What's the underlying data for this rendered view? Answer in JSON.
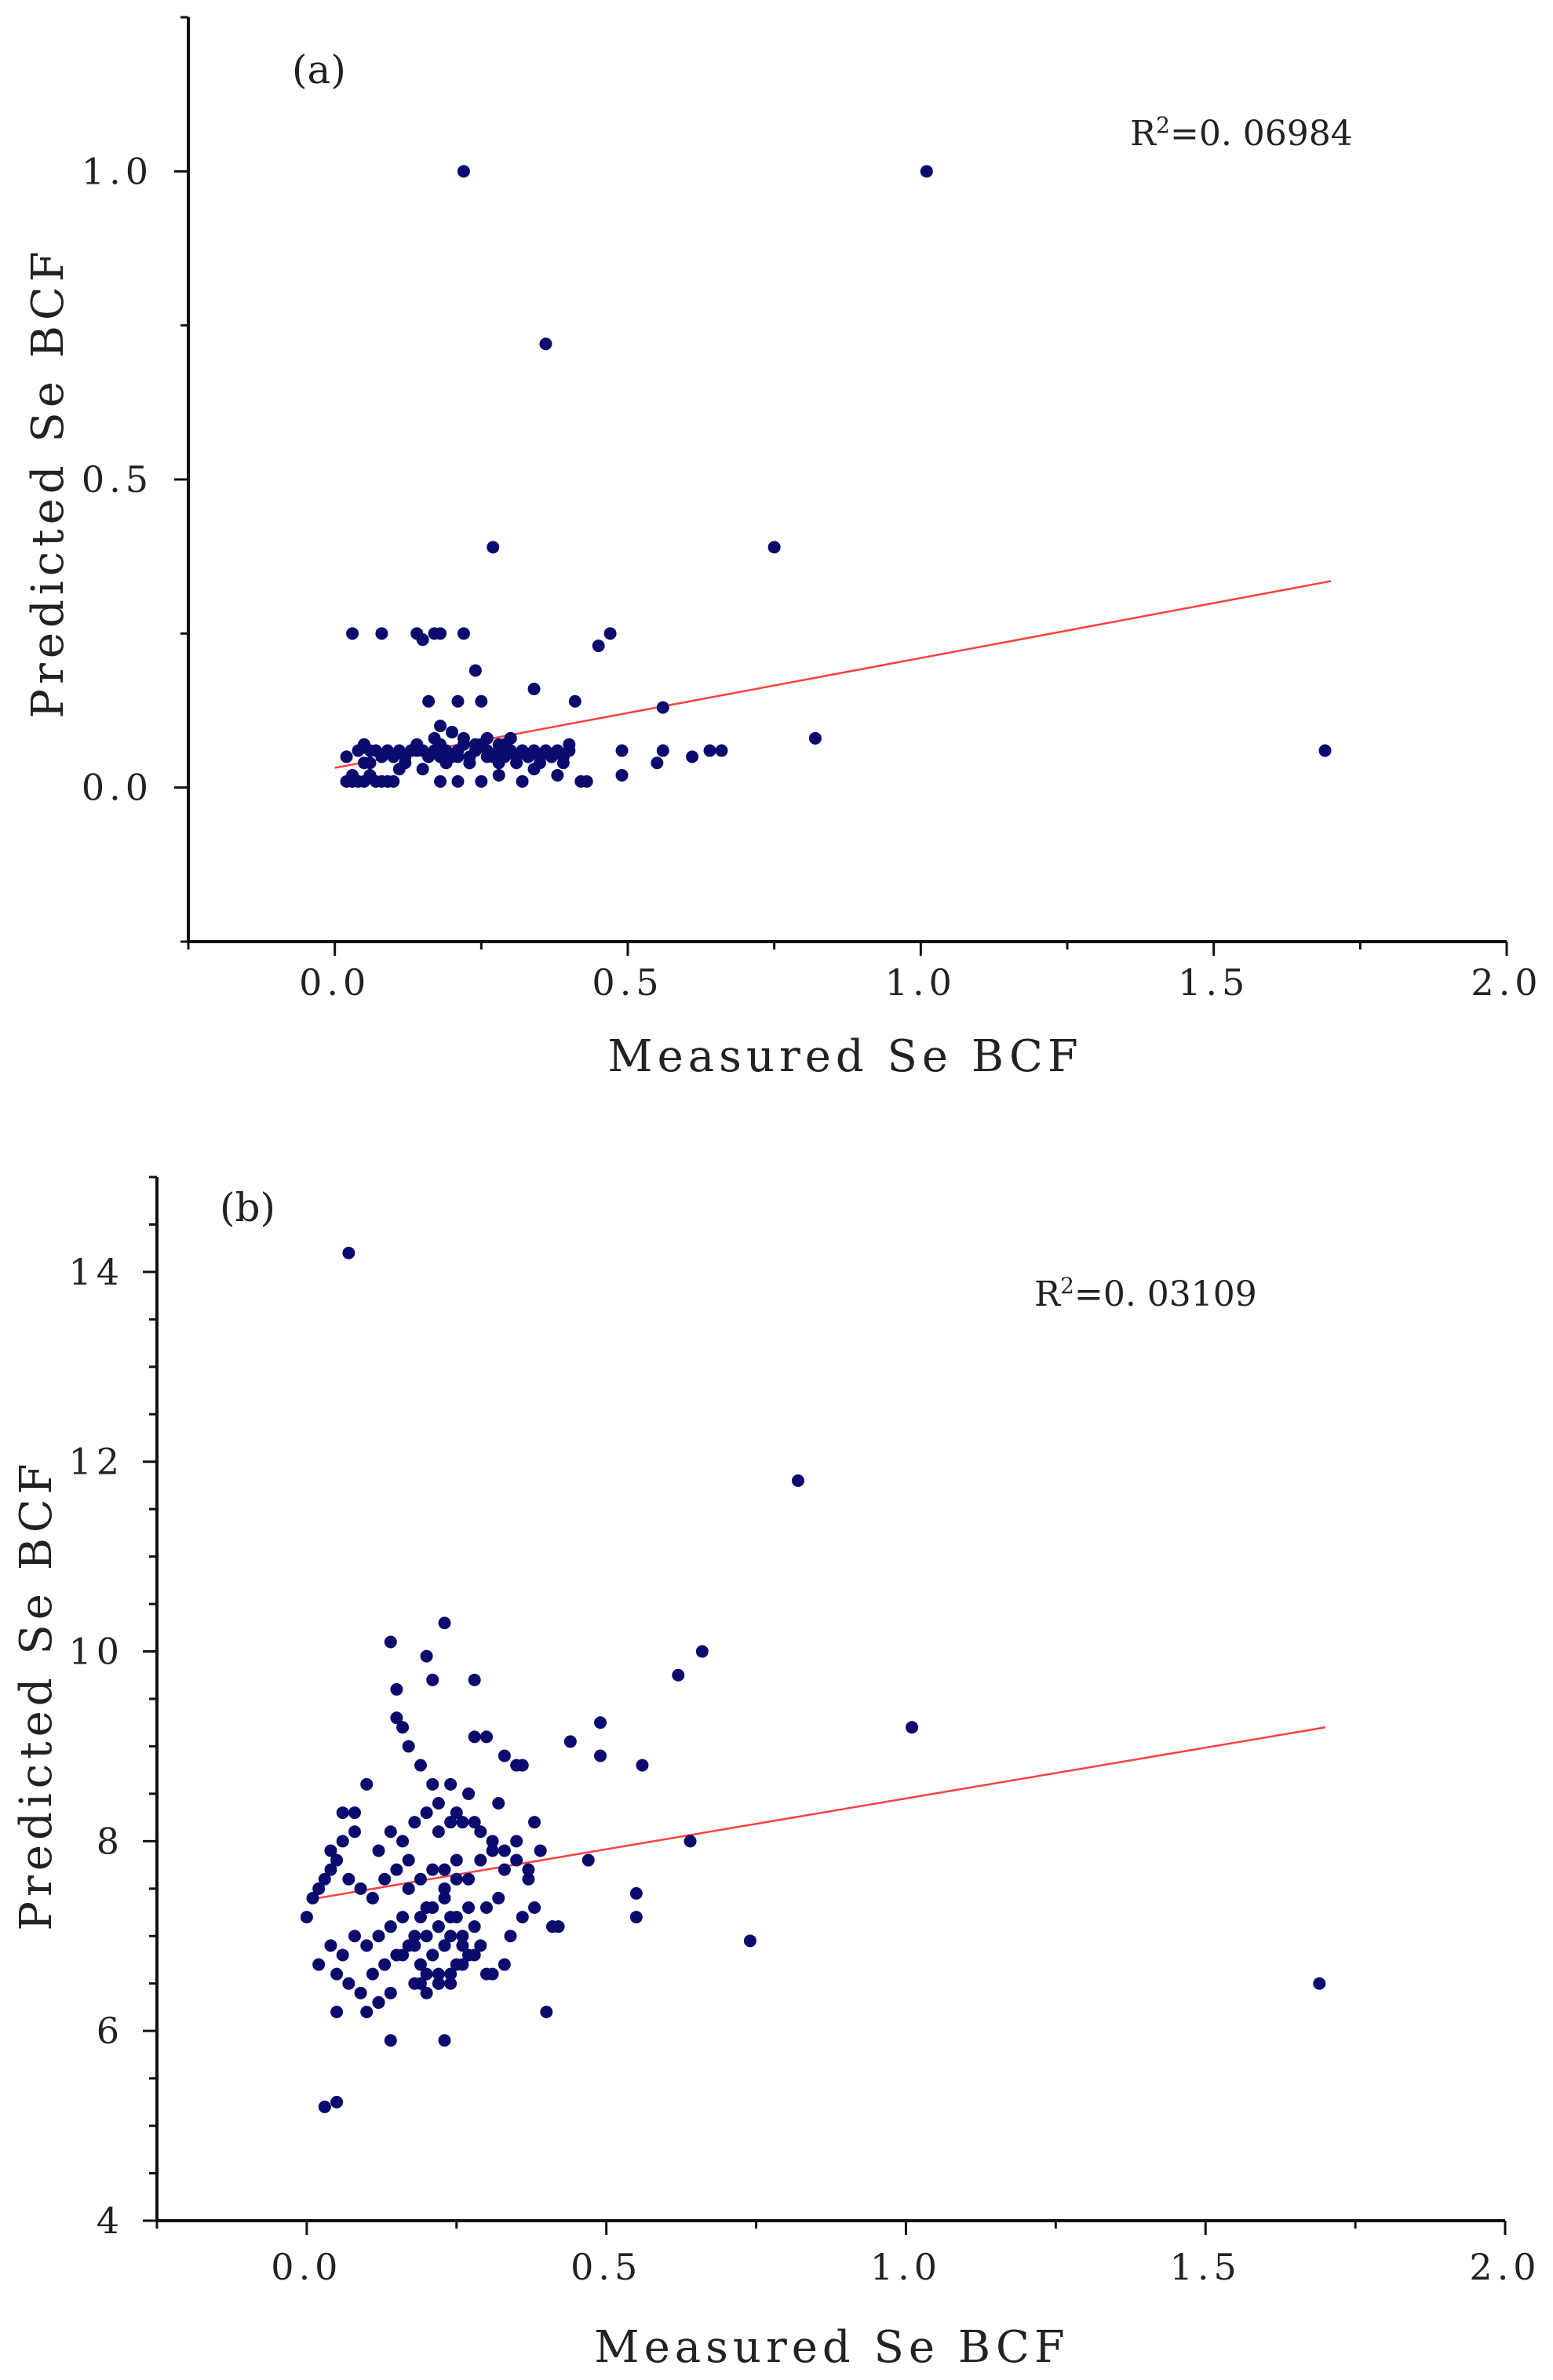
{
  "colors": {
    "point": "#0b0b6e",
    "fit_line": "#ff4040",
    "axis": "#111111"
  },
  "chart_data": [
    {
      "type": "scatter",
      "panel_label": "(a)",
      "r2_prefix": "R",
      "r2_sup": "2",
      "r2_value": "=0. 06984",
      "xlabel": "Measured Se BCF",
      "ylabel": "Predicted Se BCF",
      "xlim": [
        -0.25,
        2.0
      ],
      "ylim": [
        -0.25,
        1.25
      ],
      "xticks": [
        0.0,
        0.5,
        1.0,
        1.5,
        2.0
      ],
      "xtick_labels": [
        "0.0",
        "0.5",
        "1.0",
        "1.5",
        "2.0"
      ],
      "yticks": [
        0.0,
        0.5,
        1.0
      ],
      "ytick_labels": [
        "0.0",
        "0.5",
        "1.0"
      ],
      "yminor": [
        -0.25,
        0.25,
        0.75,
        1.25
      ],
      "xminor": [
        -0.25,
        0.25,
        0.75,
        1.25,
        1.75
      ],
      "fit_line": {
        "x": [
          0.0,
          1.7
        ],
        "y": [
          0.032,
          0.335
        ]
      },
      "points": {
        "x": [
          0.22,
          1.01,
          0.36,
          0.27,
          0.75,
          0.03,
          0.08,
          0.14,
          0.15,
          0.17,
          0.18,
          0.22,
          0.47,
          0.45,
          0.24,
          0.41,
          0.56,
          0.16,
          0.21,
          0.25,
          0.34,
          0.82,
          1.69,
          0.18,
          0.2,
          0.3,
          0.4,
          0.49,
          0.56,
          0.61,
          0.64,
          0.66,
          0.02,
          0.04,
          0.05,
          0.06,
          0.07,
          0.09,
          0.1,
          0.11,
          0.12,
          0.13,
          0.14,
          0.15,
          0.16,
          0.17,
          0.18,
          0.19,
          0.2,
          0.21,
          0.22,
          0.23,
          0.24,
          0.25,
          0.26,
          0.27,
          0.28,
          0.29,
          0.3,
          0.31,
          0.32,
          0.33,
          0.34,
          0.35,
          0.36,
          0.37,
          0.38,
          0.39,
          0.4,
          0.05,
          0.08,
          0.12,
          0.16,
          0.19,
          0.21,
          0.23,
          0.26,
          0.28,
          0.29,
          0.31,
          0.33,
          0.35,
          0.37,
          0.39,
          0.17,
          0.2,
          0.22,
          0.24,
          0.26,
          0.28,
          0.3,
          0.14,
          0.18,
          0.23,
          0.25,
          0.27,
          0.03,
          0.04,
          0.06,
          0.07,
          0.09,
          0.02,
          0.03,
          0.05,
          0.08,
          0.1,
          0.18,
          0.21,
          0.25,
          0.32,
          0.42,
          0.43,
          0.06,
          0.11,
          0.15,
          0.28,
          0.34,
          0.38,
          0.49,
          0.55
        ],
        "y": [
          1.0,
          1.0,
          0.72,
          0.39,
          0.39,
          0.25,
          0.25,
          0.25,
          0.24,
          0.25,
          0.25,
          0.25,
          0.25,
          0.23,
          0.19,
          0.14,
          0.13,
          0.14,
          0.14,
          0.14,
          0.16,
          0.08,
          0.06,
          0.1,
          0.09,
          0.08,
          0.07,
          0.06,
          0.06,
          0.05,
          0.06,
          0.06,
          0.05,
          0.06,
          0.07,
          0.06,
          0.06,
          0.06,
          0.05,
          0.06,
          0.05,
          0.06,
          0.07,
          0.06,
          0.05,
          0.06,
          0.07,
          0.06,
          0.05,
          0.06,
          0.07,
          0.05,
          0.06,
          0.07,
          0.06,
          0.05,
          0.06,
          0.07,
          0.06,
          0.05,
          0.06,
          0.05,
          0.06,
          0.05,
          0.06,
          0.05,
          0.06,
          0.05,
          0.06,
          0.04,
          0.05,
          0.04,
          0.05,
          0.04,
          0.05,
          0.04,
          0.05,
          0.04,
          0.05,
          0.04,
          0.05,
          0.04,
          0.05,
          0.04,
          0.08,
          0.09,
          0.08,
          0.07,
          0.08,
          0.07,
          0.08,
          0.06,
          0.05,
          0.04,
          0.07,
          0.05,
          0.02,
          0.01,
          0.02,
          0.01,
          0.01,
          0.01,
          0.01,
          0.01,
          0.01,
          0.01,
          0.01,
          0.01,
          0.01,
          0.01,
          0.01,
          0.01,
          0.04,
          0.03,
          0.03,
          0.02,
          0.03,
          0.02,
          0.02,
          0.04
        ]
      }
    },
    {
      "type": "scatter",
      "panel_label": "(b)",
      "r2_prefix": "R",
      "r2_sup": "2",
      "r2_value": "=0. 03109",
      "xlabel": "Measured Se BCF",
      "ylabel": "Predicted Se BCF",
      "xlim": [
        -0.25,
        2.0
      ],
      "ylim": [
        4,
        15
      ],
      "xticks": [
        0.0,
        0.5,
        1.0,
        1.5,
        2.0
      ],
      "xtick_labels": [
        "0.0",
        "0.5",
        "1.0",
        "1.5",
        "2.0"
      ],
      "yticks": [
        4,
        6,
        8,
        10,
        12,
        14
      ],
      "ytick_labels": [
        "4",
        "6",
        "8",
        "10",
        "12",
        "14"
      ],
      "yminor": [
        4.5,
        5,
        5.5,
        6.5,
        7,
        7.5,
        8.5,
        9,
        9.5,
        10.5,
        11,
        11.5,
        12.5,
        13,
        13.5,
        14.5,
        15
      ],
      "xminor": [
        -0.25,
        0.25,
        0.75,
        1.25,
        1.75
      ],
      "fit_line": {
        "x": [
          0.0,
          1.7
        ],
        "y": [
          7.38,
          9.2
        ]
      },
      "points": {
        "x": [
          0.07,
          0.82,
          1.01,
          1.69,
          0.74,
          0.64,
          0.66,
          0.62,
          0.56,
          0.55,
          0.55,
          0.49,
          0.49,
          0.47,
          0.44,
          0.42,
          0.41,
          0.4,
          0.03,
          0.05,
          0.05,
          0.14,
          0.23,
          0.24,
          0.23,
          0.14,
          0.15,
          0.2,
          0.21,
          0.28,
          0.28,
          0.15,
          0.16,
          0.17,
          0.19,
          0.21,
          0.22,
          0.26,
          0.29,
          0.32,
          0.35,
          0.38,
          0.36,
          0.33,
          0.3,
          0.27,
          0.25,
          0.24,
          0.22,
          0.2,
          0.18,
          0.16,
          0.14,
          0.12,
          0.1,
          0.08,
          0.06,
          0.04,
          0.02,
          0.0,
          0.01,
          0.03,
          0.05,
          0.07,
          0.09,
          0.11,
          0.13,
          0.15,
          0.17,
          0.19,
          0.21,
          0.23,
          0.25,
          0.27,
          0.29,
          0.31,
          0.33,
          0.35,
          0.37,
          0.39,
          0.38,
          0.36,
          0.34,
          0.32,
          0.3,
          0.28,
          0.26,
          0.24,
          0.22,
          0.2,
          0.18,
          0.16,
          0.14,
          0.12,
          0.1,
          0.08,
          0.06,
          0.04,
          0.02,
          0.05,
          0.07,
          0.09,
          0.11,
          0.13,
          0.15,
          0.17,
          0.19,
          0.21,
          0.23,
          0.25,
          0.27,
          0.29,
          0.31,
          0.33,
          0.12,
          0.14,
          0.18,
          0.2,
          0.22,
          0.24,
          0.26,
          0.28,
          0.3,
          0.16,
          0.18,
          0.2,
          0.22,
          0.24,
          0.26,
          0.19,
          0.21,
          0.23,
          0.25,
          0.27,
          0.1,
          0.12,
          0.2,
          0.22,
          0.24,
          0.17,
          0.23,
          0.25,
          0.35,
          0.37,
          0.08,
          0.06,
          0.04,
          0.28,
          0.31,
          0.33,
          0.19,
          0.22
        ],
        "y": [
          14.2,
          11.8,
          9.2,
          6.5,
          6.95,
          8.0,
          10.0,
          9.75,
          8.8,
          7.45,
          7.2,
          9.25,
          8.9,
          7.8,
          9.05,
          7.1,
          7.1,
          6.2,
          5.2,
          5.25,
          6.2,
          10.1,
          10.3,
          8.6,
          5.9,
          5.9,
          9.6,
          9.95,
          9.7,
          9.7,
          9.1,
          9.3,
          9.2,
          9.0,
          8.8,
          8.6,
          8.4,
          8.2,
          8.1,
          8.4,
          8.0,
          8.2,
          8.8,
          8.9,
          9.1,
          8.5,
          8.3,
          8.2,
          8.1,
          8.3,
          8.2,
          8.0,
          8.1,
          7.9,
          8.6,
          8.3,
          8.0,
          7.7,
          7.5,
          7.2,
          7.4,
          7.6,
          7.8,
          7.6,
          7.5,
          7.4,
          7.6,
          7.7,
          7.5,
          7.6,
          7.7,
          7.5,
          7.8,
          7.6,
          7.8,
          7.9,
          7.7,
          7.8,
          7.6,
          7.9,
          7.3,
          7.2,
          7.0,
          7.4,
          7.3,
          7.1,
          7.0,
          7.2,
          7.1,
          7.3,
          7.0,
          7.2,
          7.1,
          7.0,
          6.9,
          7.0,
          6.8,
          6.9,
          6.7,
          6.6,
          6.5,
          6.4,
          6.6,
          6.7,
          6.8,
          6.9,
          6.7,
          6.8,
          6.9,
          6.7,
          6.8,
          6.9,
          6.6,
          6.7,
          6.3,
          6.4,
          6.5,
          6.6,
          6.5,
          6.6,
          6.7,
          6.8,
          6.6,
          6.8,
          6.9,
          7.0,
          7.1,
          7.0,
          6.9,
          7.2,
          7.3,
          7.4,
          7.2,
          7.3,
          6.2,
          6.3,
          6.4,
          6.5,
          6.5,
          7.8,
          7.7,
          7.6,
          8.8,
          7.7,
          8.1,
          8.3,
          7.9,
          8.2,
          8.0,
          7.9,
          6.5,
          6.6
        ]
      }
    }
  ]
}
